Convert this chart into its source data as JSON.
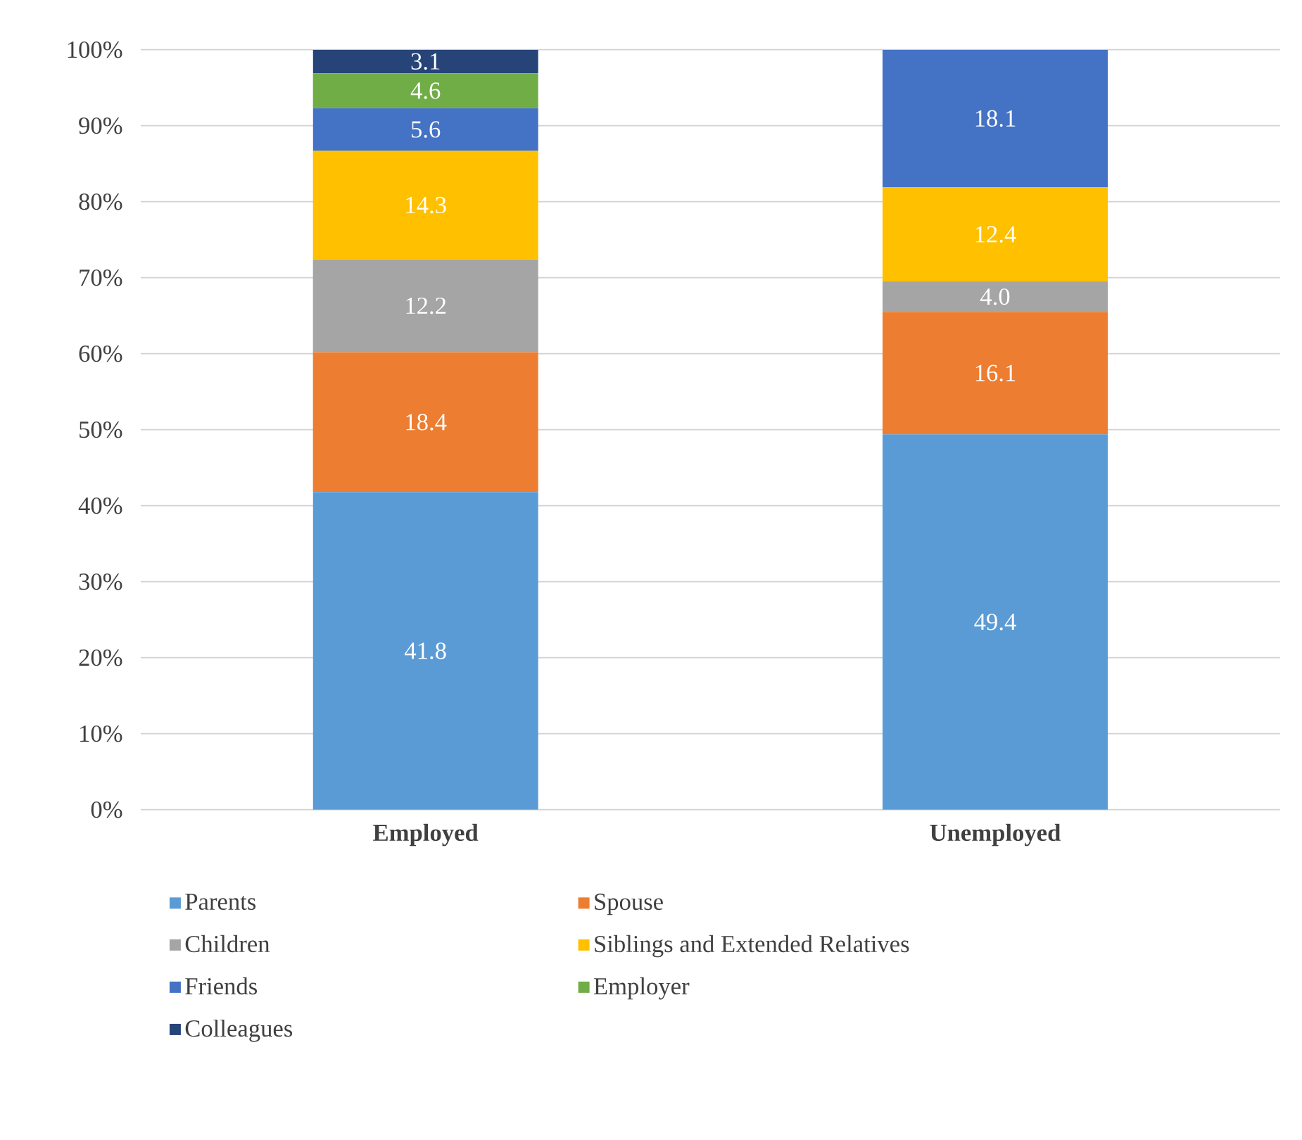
{
  "chart_data": {
    "type": "bar",
    "stacked": true,
    "categories": [
      "Employed",
      "Unemployed"
    ],
    "series": [
      {
        "name": "Parents",
        "color": "#5b9bd5",
        "values": [
          41.8,
          49.4
        ],
        "value_labels": [
          "41.8",
          "49.4"
        ]
      },
      {
        "name": "Spouse",
        "color": "#ed7d31",
        "values": [
          18.4,
          16.1
        ],
        "value_labels": [
          "18.4",
          "16.1"
        ]
      },
      {
        "name": "Children",
        "color": "#a5a5a5",
        "values": [
          12.2,
          4.0
        ],
        "value_labels": [
          "12.2",
          "4.0"
        ]
      },
      {
        "name": "Siblings and Extended Relatives",
        "color": "#ffc000",
        "values": [
          14.3,
          12.4
        ],
        "value_labels": [
          "14.3",
          "12.4"
        ]
      },
      {
        "name": "Friends",
        "color": "#4472c4",
        "values": [
          5.6,
          18.1
        ],
        "value_labels": [
          "5.6",
          "18.1"
        ]
      },
      {
        "name": "Employer",
        "color": "#70ad47",
        "values": [
          4.6,
          null
        ],
        "value_labels": [
          "4.6",
          null
        ]
      },
      {
        "name": "Colleagues",
        "color": "#264478",
        "values": [
          3.1,
          null
        ],
        "value_labels": [
          "3.1",
          null
        ]
      }
    ],
    "ylim": [
      0,
      100
    ],
    "yticks": [
      {
        "value": 0,
        "label": "0%"
      },
      {
        "value": 10,
        "label": "10%"
      },
      {
        "value": 20,
        "label": "20%"
      },
      {
        "value": 30,
        "label": "30%"
      },
      {
        "value": 40,
        "label": "40%"
      },
      {
        "value": 50,
        "label": "50%"
      },
      {
        "value": 60,
        "label": "60%"
      },
      {
        "value": 70,
        "label": "70%"
      },
      {
        "value": 80,
        "label": "80%"
      },
      {
        "value": 90,
        "label": "90%"
      },
      {
        "value": 100,
        "label": "100%"
      }
    ],
    "grid": "y",
    "legend": "bottom"
  }
}
